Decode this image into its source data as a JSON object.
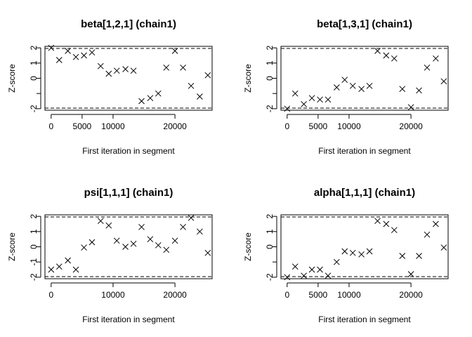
{
  "chart_data": [
    {
      "type": "scatter",
      "title": "beta[1,2,1] (chain1)",
      "xlabel": "First iteration in segment",
      "ylabel": "Z-score",
      "xlim": [
        -1000,
        26000
      ],
      "ylim": [
        -2.1,
        2.1
      ],
      "xticks": [
        0,
        5000,
        10000,
        20000
      ],
      "yticks": [
        -2,
        -1,
        0,
        1,
        2
      ],
      "ytick_labels": [
        "-2",
        "",
        "0",
        "1",
        "2"
      ],
      "reference_lines": [
        -1.96,
        1.96
      ],
      "marker": "x",
      "x": [
        0,
        1300,
        2700,
        4000,
        5300,
        6600,
        8000,
        9300,
        10600,
        12000,
        13300,
        14600,
        16000,
        17300,
        18600,
        20000,
        21300,
        22600,
        24000,
        25300
      ],
      "y": [
        2.0,
        1.2,
        1.8,
        1.4,
        1.5,
        1.7,
        0.8,
        0.3,
        0.5,
        0.6,
        0.5,
        -1.5,
        -1.3,
        -1.0,
        0.7,
        1.8,
        0.7,
        -0.5,
        -1.2,
        0.2
      ]
    },
    {
      "type": "scatter",
      "title": "beta[1,3,1] (chain1)",
      "xlabel": "First iteration in segment",
      "ylabel": "Z-score",
      "xlim": [
        -1000,
        26000
      ],
      "ylim": [
        -2.1,
        2.1
      ],
      "xticks": [
        0,
        5000,
        10000,
        20000
      ],
      "yticks": [
        -2,
        -1,
        0,
        1,
        2
      ],
      "ytick_labels": [
        "-2",
        "",
        "0",
        "1",
        "2"
      ],
      "reference_lines": [
        -1.96,
        1.96
      ],
      "marker": "x",
      "x": [
        0,
        1300,
        2700,
        4000,
        5300,
        6600,
        8000,
        9300,
        10600,
        12000,
        13300,
        14600,
        16000,
        17300,
        18600,
        20000,
        21300,
        22600,
        24000,
        25300
      ],
      "y": [
        -2.0,
        -1.0,
        -1.7,
        -1.3,
        -1.4,
        -1.4,
        -0.6,
        -0.1,
        -0.5,
        -0.7,
        -0.5,
        1.8,
        1.5,
        1.3,
        -0.7,
        -1.9,
        -0.8,
        0.7,
        1.3,
        -0.2
      ]
    },
    {
      "type": "scatter",
      "title": "psi[1,1,1] (chain1)",
      "xlabel": "First iteration in segment",
      "ylabel": "Z-score",
      "xlim": [
        -1000,
        26000
      ],
      "ylim": [
        -2.1,
        2.1
      ],
      "xticks": [
        0,
        10000,
        20000
      ],
      "yticks": [
        -2,
        -1,
        0,
        1,
        2
      ],
      "ytick_labels": [
        "-2",
        "-1",
        "0",
        "1",
        "2"
      ],
      "reference_lines": [
        -1.96,
        1.96
      ],
      "marker": "x",
      "x": [
        0,
        1300,
        2700,
        4000,
        5300,
        6600,
        8000,
        9300,
        10600,
        12000,
        13300,
        14600,
        16000,
        17300,
        18600,
        20000,
        21300,
        22600,
        24000,
        25300
      ],
      "y": [
        -1.5,
        -1.3,
        -0.9,
        -1.5,
        -0.05,
        0.3,
        1.7,
        1.4,
        0.4,
        0.0,
        0.2,
        1.3,
        0.5,
        0.1,
        -0.2,
        0.4,
        1.3,
        1.9,
        1.0,
        -0.4
      ]
    },
    {
      "type": "scatter",
      "title": "alpha[1,1,1] (chain1)",
      "xlabel": "First iteration in segment",
      "ylabel": "Z-score",
      "xlim": [
        -1000,
        26000
      ],
      "ylim": [
        -2.1,
        2.1
      ],
      "xticks": [
        0,
        5000,
        10000,
        20000
      ],
      "yticks": [
        -2,
        -1,
        0,
        1,
        2
      ],
      "ytick_labels": [
        "-2",
        "",
        "0",
        "1",
        "2"
      ],
      "reference_lines": [
        -1.96,
        1.96
      ],
      "marker": "x",
      "x": [
        0,
        1300,
        2700,
        4000,
        5300,
        6600,
        8000,
        9300,
        10600,
        12000,
        13300,
        14600,
        16000,
        17300,
        18600,
        20000,
        21300,
        22600,
        24000,
        25300
      ],
      "y": [
        -2.0,
        -1.3,
        -1.9,
        -1.5,
        -1.5,
        -1.9,
        -1.0,
        -0.3,
        -0.4,
        -0.5,
        -0.3,
        1.7,
        1.5,
        1.1,
        -0.6,
        -1.8,
        -0.6,
        0.8,
        1.5,
        -0.05
      ]
    }
  ]
}
